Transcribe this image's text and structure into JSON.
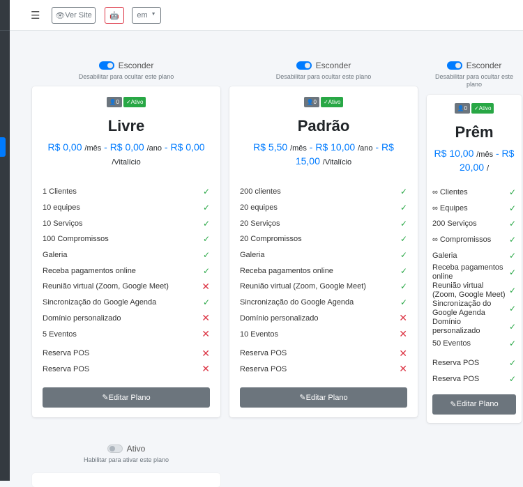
{
  "header": {
    "ver_site": "Ver Site",
    "lang": "em"
  },
  "plans": [
    {
      "toggle_label": "Esconder",
      "toggle_hint": "Desabilitar para ocultar este plano",
      "users": "0",
      "status": "Ativo",
      "name": "Livre",
      "price_month": "R$ 0,00",
      "unit_month": "/mês",
      "price_year": "R$ 0,00",
      "unit_year": "/ano",
      "price_life": "R$ 0,00",
      "unit_life": "/Vitalício",
      "features": [
        [
          "1 Clientes",
          true
        ],
        [
          "10 equipes",
          true
        ],
        [
          "10 Serviços",
          true
        ],
        [
          "100 Compromissos",
          true
        ],
        [
          "Galeria",
          true
        ],
        [
          "Receba pagamentos online",
          true
        ],
        [
          "Reunião virtual (Zoom, Google Meet)",
          false
        ],
        [
          "Sincronização do Google Agenda",
          true
        ],
        [
          "Domínio personalizado",
          false
        ],
        [
          "5 Eventos",
          false
        ],
        [
          "Reserva POS",
          false
        ],
        [
          "Reserva POS",
          false
        ]
      ],
      "edit": "Editar Plano"
    },
    {
      "toggle_label": "Esconder",
      "toggle_hint": "Desabilitar para ocultar este plano",
      "users": "0",
      "status": "Ativo",
      "name": "Padrão",
      "price_month": "R$ 5,50",
      "unit_month": "/mês",
      "price_year": "R$ 10,00",
      "unit_year": "/ano",
      "price_life": "R$ 15,00",
      "unit_life": "/Vitalício",
      "features": [
        [
          "200 clientes",
          true
        ],
        [
          "20 equipes",
          true
        ],
        [
          "20 Serviços",
          true
        ],
        [
          "20 Compromissos",
          true
        ],
        [
          "Galeria",
          true
        ],
        [
          "Receba pagamentos online",
          true
        ],
        [
          "Reunião virtual (Zoom, Google Meet)",
          true
        ],
        [
          "Sincronização do Google Agenda",
          true
        ],
        [
          "Domínio personalizado",
          false
        ],
        [
          "10 Eventos",
          false
        ],
        [
          "Reserva POS",
          false
        ],
        [
          "Reserva POS",
          false
        ]
      ],
      "edit": "Editar Plano"
    },
    {
      "toggle_label": "Esconder",
      "toggle_hint": "Desabilitar para ocultar este plano",
      "users": "0",
      "status": "Ativo",
      "name": "Prêm",
      "price_month": "R$ 10,00",
      "unit_month": "/mês",
      "price_year": "R$ 20,00",
      "unit_year": "/",
      "price_life": "",
      "unit_life": "",
      "features": [
        [
          "∞ Clientes",
          true
        ],
        [
          "∞ Equipes",
          true
        ],
        [
          "200 Serviços",
          true
        ],
        [
          "∞ Compromissos",
          true
        ],
        [
          "Galeria",
          true
        ],
        [
          "Receba pagamentos online",
          true
        ],
        [
          "Reunião virtual (Zoom, Google Meet)",
          true
        ],
        [
          "Sincronização do Google Agenda",
          true
        ],
        [
          "Domínio personalizado",
          true
        ],
        [
          "50 Eventos",
          true
        ],
        [
          "Reserva POS",
          true
        ],
        [
          "Reserva POS",
          true
        ]
      ],
      "edit": "Editar Plano"
    }
  ],
  "bottom": {
    "toggle_label": "Ativo",
    "toggle_hint": "Habilitar para ativar este plano"
  },
  "colors": {
    "primary": "#007bff",
    "success": "#28a745",
    "danger": "#dc3545",
    "secondary": "#6c757d"
  }
}
